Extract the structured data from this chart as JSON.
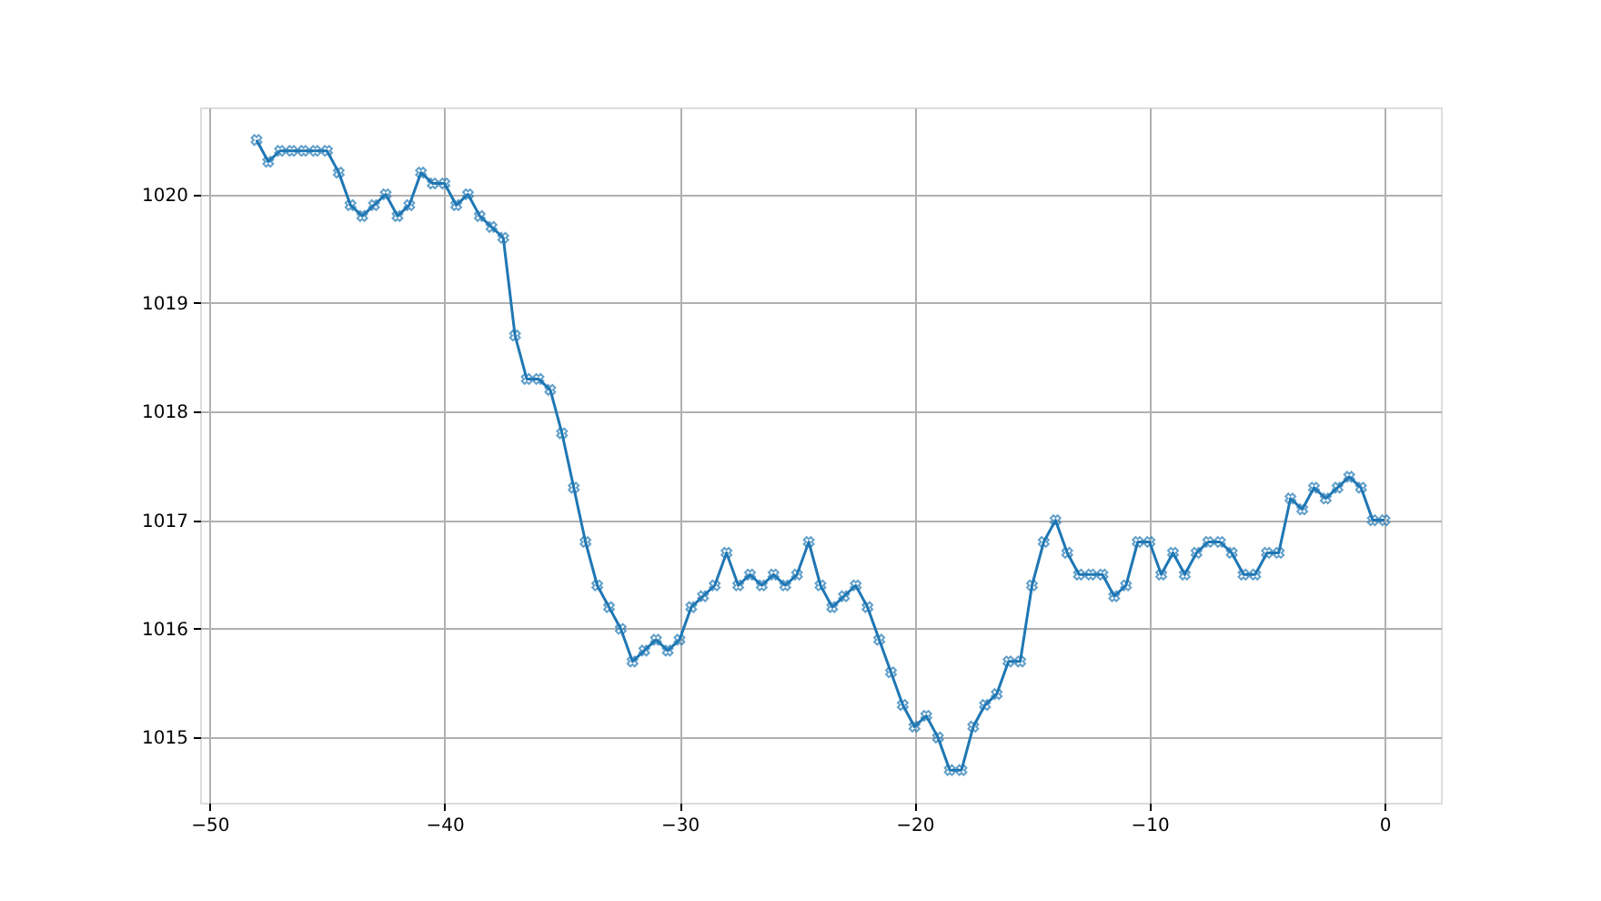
{
  "chart_data": {
    "type": "line",
    "marker": "cross",
    "line_style": "solid",
    "grid": true,
    "xlim": [
      -50.4,
      2.4
    ],
    "ylim": [
      1014.4,
      1020.8
    ],
    "xticks": [
      -50,
      -40,
      -30,
      -20,
      -10,
      0
    ],
    "yticks": [
      1015,
      1016,
      1017,
      1018,
      1019,
      1020
    ],
    "x": [
      -48,
      -47.5,
      -47,
      -46.5,
      -46,
      -45.5,
      -45,
      -44.5,
      -44,
      -43.5,
      -43,
      -42.5,
      -42,
      -41.5,
      -41,
      -40.5,
      -40,
      -39.5,
      -39,
      -38.5,
      -38,
      -37.5,
      -37,
      -36.5,
      -36,
      -35.5,
      -35,
      -34.5,
      -34,
      -33.5,
      -33,
      -32.5,
      -32,
      -31.5,
      -31,
      -30.5,
      -30,
      -29.5,
      -29,
      -28.5,
      -28,
      -27.5,
      -27,
      -26.5,
      -26,
      -25.5,
      -25,
      -24.5,
      -24,
      -23.5,
      -23,
      -22.5,
      -22,
      -21.5,
      -21,
      -20.5,
      -20,
      -19.5,
      -19,
      -18.5,
      -18,
      -17.5,
      -17,
      -16.5,
      -16,
      -15.5,
      -15,
      -14.5,
      -14,
      -13.5,
      -13,
      -12.5,
      -12,
      -11.5,
      -11,
      -10.5,
      -10,
      -9.5,
      -9,
      -8.5,
      -8,
      -7.5,
      -7,
      -6.5,
      -6,
      -5.5,
      -5,
      -4.5,
      -4,
      -3.5,
      -3,
      -2.5,
      -2,
      -1.5,
      -1,
      -0.5,
      0
    ],
    "series": [
      {
        "color": "#1f77b4",
        "values": [
          1020.5,
          1020.3,
          1020.4,
          1020.4,
          1020.4,
          1020.4,
          1020.4,
          1020.2,
          1019.9,
          1019.8,
          1019.9,
          1020.0,
          1019.8,
          1019.9,
          1020.2,
          1020.1,
          1020.1,
          1019.9,
          1020.0,
          1019.8,
          1019.7,
          1019.6,
          1018.7,
          1018.3,
          1018.3,
          1018.2,
          1017.8,
          1017.3,
          1016.8,
          1016.4,
          1016.2,
          1016.0,
          1015.7,
          1015.8,
          1015.9,
          1015.8,
          1015.9,
          1016.2,
          1016.3,
          1016.4,
          1016.7,
          1016.4,
          1016.5,
          1016.4,
          1016.5,
          1016.4,
          1016.5,
          1016.8,
          1016.4,
          1016.2,
          1016.3,
          1016.4,
          1016.2,
          1015.9,
          1015.6,
          1015.3,
          1015.1,
          1015.2,
          1015.0,
          1014.7,
          1014.7,
          1015.1,
          1015.3,
          1015.4,
          1015.7,
          1015.7,
          1016.4,
          1016.8,
          1017.0,
          1016.7,
          1016.5,
          1016.5,
          1016.5,
          1016.3,
          1016.4,
          1016.8,
          1016.8,
          1016.5,
          1016.7,
          1016.5,
          1016.7,
          1016.8,
          1016.8,
          1016.7,
          1016.5,
          1016.5,
          1016.7,
          1016.7,
          1017.2,
          1017.1,
          1017.3,
          1017.2,
          1017.3,
          1017.4,
          1017.3,
          1017.0,
          1017.0
        ]
      }
    ]
  }
}
